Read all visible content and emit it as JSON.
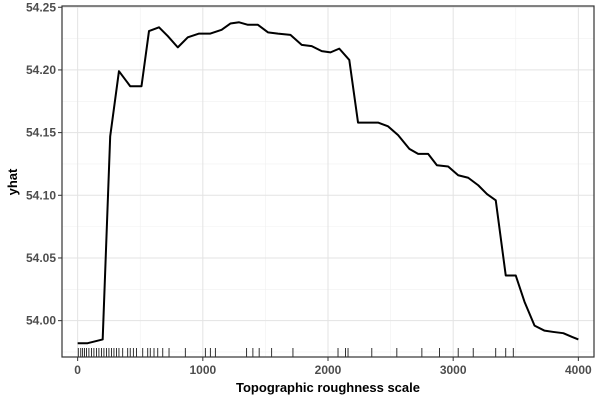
{
  "chart_data": {
    "type": "line",
    "xlabel": "Topographic roughness scale",
    "ylabel": "yhat",
    "xlim": [
      -125,
      4125
    ],
    "ylim": [
      53.971,
      54.251
    ],
    "x_ticks": [
      0,
      1000,
      2000,
      3000,
      4000
    ],
    "x_tick_labels": [
      "0",
      "1000",
      "2000",
      "3000",
      "4000"
    ],
    "y_ticks": [
      54.0,
      54.05,
      54.1,
      54.15,
      54.2,
      54.25
    ],
    "y_tick_labels": [
      "54.00",
      "54.05",
      "54.10",
      "54.15",
      "54.20",
      "54.25"
    ],
    "grid": true,
    "line_color": "#000000",
    "series": [
      {
        "x": [
          0,
          80,
          160,
          200,
          260,
          330,
          420,
          510,
          570,
          650,
          720,
          800,
          880,
          970,
          1060,
          1150,
          1220,
          1290,
          1360,
          1440,
          1520,
          1600,
          1700,
          1790,
          1870,
          1950,
          2020,
          2090,
          2170,
          2240,
          2320,
          2400,
          2480,
          2560,
          2650,
          2720,
          2800,
          2870,
          2960,
          3040,
          3120,
          3200,
          3270,
          3340,
          3420,
          3500,
          3570,
          3650,
          3730,
          3800,
          3880,
          3950,
          4000
        ],
        "y": [
          53.982,
          53.982,
          53.984,
          53.985,
          54.147,
          54.199,
          54.187,
          54.187,
          54.231,
          54.234,
          54.227,
          54.218,
          54.226,
          54.229,
          54.229,
          54.232,
          54.237,
          54.238,
          54.236,
          54.236,
          54.23,
          54.229,
          54.228,
          54.22,
          54.219,
          54.215,
          54.214,
          54.217,
          54.208,
          54.158,
          54.158,
          54.158,
          54.155,
          54.148,
          54.137,
          54.133,
          54.133,
          54.124,
          54.123,
          54.116,
          54.114,
          54.108,
          54.101,
          54.096,
          54.036,
          54.036,
          54.015,
          53.996,
          53.992,
          53.991,
          53.99,
          53.987,
          53.985
        ]
      }
    ],
    "rug": [
      5,
      25,
      40,
      55,
      70,
      90,
      110,
      130,
      150,
      170,
      190,
      210,
      230,
      250,
      270,
      290,
      310,
      330,
      360,
      400,
      420,
      445,
      470,
      520,
      560,
      580,
      610,
      640,
      680,
      730,
      860,
      1020,
      1060,
      1100,
      1350,
      1400,
      1450,
      1550,
      1720,
      2080,
      2140,
      2160,
      2350,
      2550,
      2750,
      2890,
      3040,
      3160,
      3340,
      3420,
      3480
    ]
  }
}
